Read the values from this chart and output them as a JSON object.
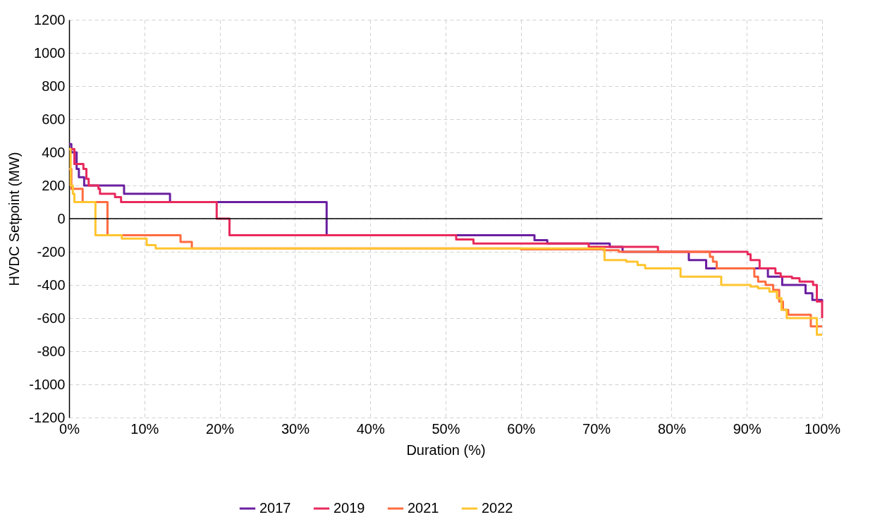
{
  "chart_data": {
    "type": "step",
    "xlabel": "Duration (%)",
    "ylabel": "HVDC Setpoint (MW)",
    "xlim": [
      0,
      100
    ],
    "xticks": [
      {
        "value": 0,
        "label": "0%"
      },
      {
        "value": 10,
        "label": "10%"
      },
      {
        "value": 20,
        "label": "20%"
      },
      {
        "value": 30,
        "label": "30%"
      },
      {
        "value": 40,
        "label": "40%"
      },
      {
        "value": 50,
        "label": "50%"
      },
      {
        "value": 60,
        "label": "60%"
      },
      {
        "value": 70,
        "label": "70%"
      },
      {
        "value": 80,
        "label": "80%"
      },
      {
        "value": 90,
        "label": "90%"
      },
      {
        "value": 100,
        "label": "100%"
      }
    ],
    "ylim": [
      -1200,
      1200
    ],
    "yticks": [
      -1200,
      -1000,
      -800,
      -600,
      -400,
      -200,
      0,
      200,
      400,
      600,
      800,
      1000,
      1200
    ],
    "grid": true,
    "legend": "bottom",
    "marker": "none",
    "line_style": "solid",
    "ref_lines": [
      {
        "axis": "y",
        "value": 0,
        "color": "#000000"
      }
    ],
    "series": [
      {
        "name": "2017",
        "color": "#6a1fa0",
        "x": [
          0,
          0.3,
          1,
          1.3,
          2,
          7.3,
          13.4,
          34.2,
          61.8,
          63.5,
          71.8,
          73.5,
          82.3,
          84.6,
          92.8,
          94.7,
          97.8,
          98.7,
          100
        ],
        "values": [
          450,
          400,
          300,
          250,
          200,
          150,
          100,
          -100,
          -130,
          -150,
          -170,
          -200,
          -250,
          -300,
          -350,
          -400,
          -450,
          -490,
          -500
        ]
      },
      {
        "name": "2019",
        "color": "#e8295c",
        "x": [
          0,
          0.7,
          1.9,
          2.3,
          2.6,
          3.9,
          4.1,
          6.1,
          6.9,
          19.6,
          21.3,
          51.4,
          53.7,
          69,
          78.2,
          90.1,
          90.5,
          91.7,
          93.8,
          94.5,
          96,
          97,
          98.8,
          99.3,
          100
        ],
        "values": [
          420,
          330,
          300,
          240,
          200,
          180,
          150,
          130,
          100,
          0,
          -100,
          -125,
          -150,
          -170,
          -200,
          -215,
          -250,
          -300,
          -330,
          -350,
          -360,
          -380,
          -400,
          -500,
          -600
        ]
      },
      {
        "name": "2021",
        "color": "#ff6b40",
        "x": [
          0,
          0.3,
          1.8,
          5.1,
          14.8,
          16.3,
          60,
          71,
          73,
          85.1,
          85.5,
          86,
          86.5,
          91,
          91.5,
          92.5,
          93.5,
          94.3,
          94.8,
          95.5,
          98.5,
          100
        ],
        "values": [
          300,
          180,
          100,
          -100,
          -140,
          -180,
          -185,
          -190,
          -200,
          -230,
          -260,
          -300,
          -300,
          -350,
          -380,
          -400,
          -430,
          -500,
          -550,
          -580,
          -650,
          -650
        ]
      },
      {
        "name": "2022",
        "color": "#ffc530",
        "x": [
          0,
          0.2,
          0.5,
          0.7,
          3.5,
          7,
          10.3,
          11.5,
          71.1,
          74,
          75.5,
          76.5,
          81.2,
          86.6,
          90.5,
          91.5,
          93,
          94,
          94.6,
          95.3,
          99.3,
          100
        ],
        "values": [
          420,
          200,
          150,
          100,
          -100,
          -120,
          -160,
          -180,
          -250,
          -260,
          -280,
          -300,
          -350,
          -400,
          -410,
          -420,
          -440,
          -480,
          -550,
          -600,
          -700,
          -700
        ]
      }
    ]
  }
}
